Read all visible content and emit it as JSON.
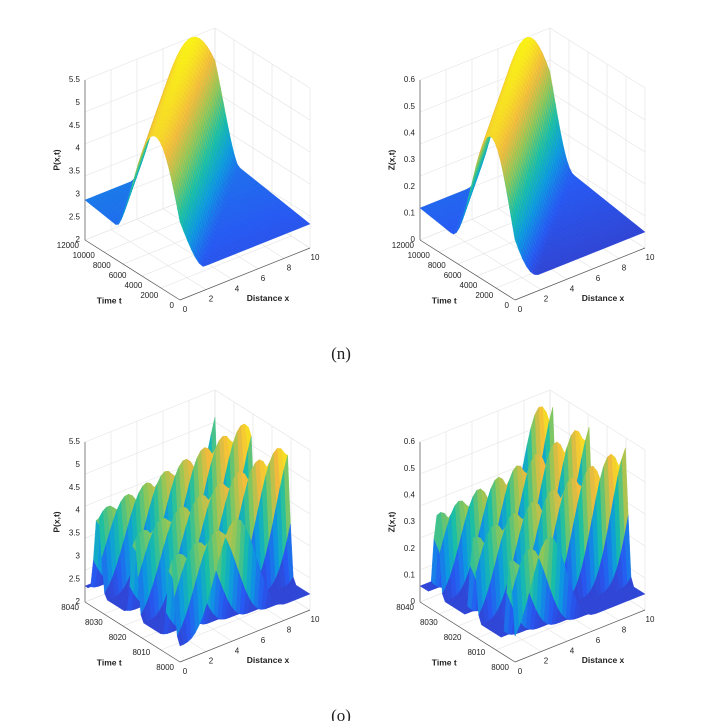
{
  "figures": [
    {
      "caption": "(n)",
      "plots": [
        {
          "zlabel": "P(x,t)",
          "zticks": [
            "2",
            "2.5",
            "3",
            "3.5",
            "4",
            "4.5",
            "5",
            "5.5"
          ],
          "tlabel": "Time t",
          "tticks": [
            "0",
            "2000",
            "4000",
            "6000",
            "8000",
            "10000",
            "12000"
          ],
          "xlabel": "Distance x",
          "xticks": [
            "0",
            "2",
            "4",
            "6",
            "8",
            "10"
          ]
        },
        {
          "zlabel": "Z(x,t)",
          "zticks": [
            "0",
            "0.1",
            "0.2",
            "0.3",
            "0.4",
            "0.5",
            "0.6"
          ],
          "tlabel": "Time t",
          "tticks": [
            "0",
            "2000",
            "4000",
            "6000",
            "8000",
            "10000",
            "12000"
          ],
          "xlabel": "Distance x",
          "xticks": [
            "0",
            "2",
            "4",
            "6",
            "8",
            "10"
          ]
        }
      ]
    },
    {
      "caption": "(o)",
      "plots": [
        {
          "zlabel": "P(x,t)",
          "zticks": [
            "2",
            "2.5",
            "3",
            "3.5",
            "4",
            "4.5",
            "5",
            "5.5"
          ],
          "tlabel": "Time t",
          "tticks": [
            "8000",
            "8010",
            "8020",
            "8030",
            "8040"
          ],
          "xlabel": "Distance x",
          "xticks": [
            "0",
            "2",
            "4",
            "6",
            "8",
            "10"
          ]
        },
        {
          "zlabel": "Z(x,t)",
          "zticks": [
            "0",
            "0.1",
            "0.2",
            "0.3",
            "0.4",
            "0.5",
            "0.6"
          ],
          "tlabel": "Time t",
          "tticks": [
            "8000",
            "8010",
            "8020",
            "8030",
            "8040"
          ],
          "xlabel": "Distance x",
          "xticks": [
            "0",
            "2",
            "4",
            "6",
            "8",
            "10"
          ]
        }
      ]
    }
  ]
}
